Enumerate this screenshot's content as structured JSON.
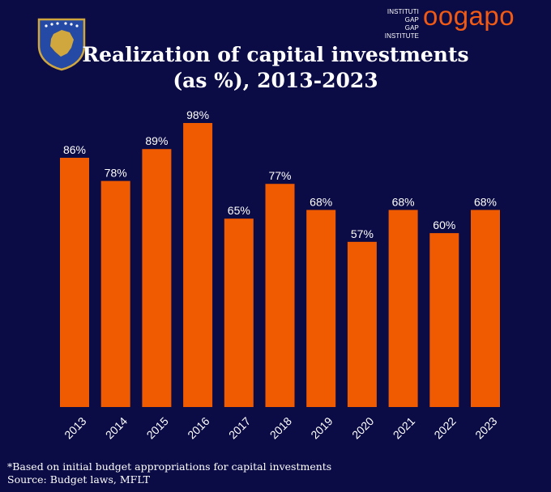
{
  "title_line1": "Realization of capital investments",
  "title_line2": "(as %), 2013-2023",
  "brand": {
    "line1": "INSTITUTI GAP",
    "line2": "GAP INSTITUTE",
    "wordmark": "oogapo",
    "color": "#f05a14"
  },
  "footnote": {
    "note": "*Based on initial budget appropriations for capital investments",
    "source": " Source: Budget laws, MFLT"
  },
  "colors": {
    "background": "#0b0b45",
    "bar": "#f05a00",
    "crest_blue": "#244aa5",
    "crest_gold": "#d0a73e"
  },
  "chart_data": {
    "type": "bar",
    "categories": [
      "2013",
      "2014",
      "2015",
      "2016",
      "2017",
      "2018",
      "2019",
      "2020",
      "2021",
      "2022",
      "2023"
    ],
    "values": [
      86,
      78,
      89,
      98,
      65,
      77,
      68,
      57,
      68,
      60,
      68
    ],
    "data_labels": [
      "86%",
      "78%",
      "89%",
      "98%",
      "65%",
      "77%",
      "68%",
      "57%",
      "68%",
      "60%",
      "68%"
    ],
    "ylim": [
      0,
      100
    ],
    "grid": false,
    "legend": "none"
  }
}
